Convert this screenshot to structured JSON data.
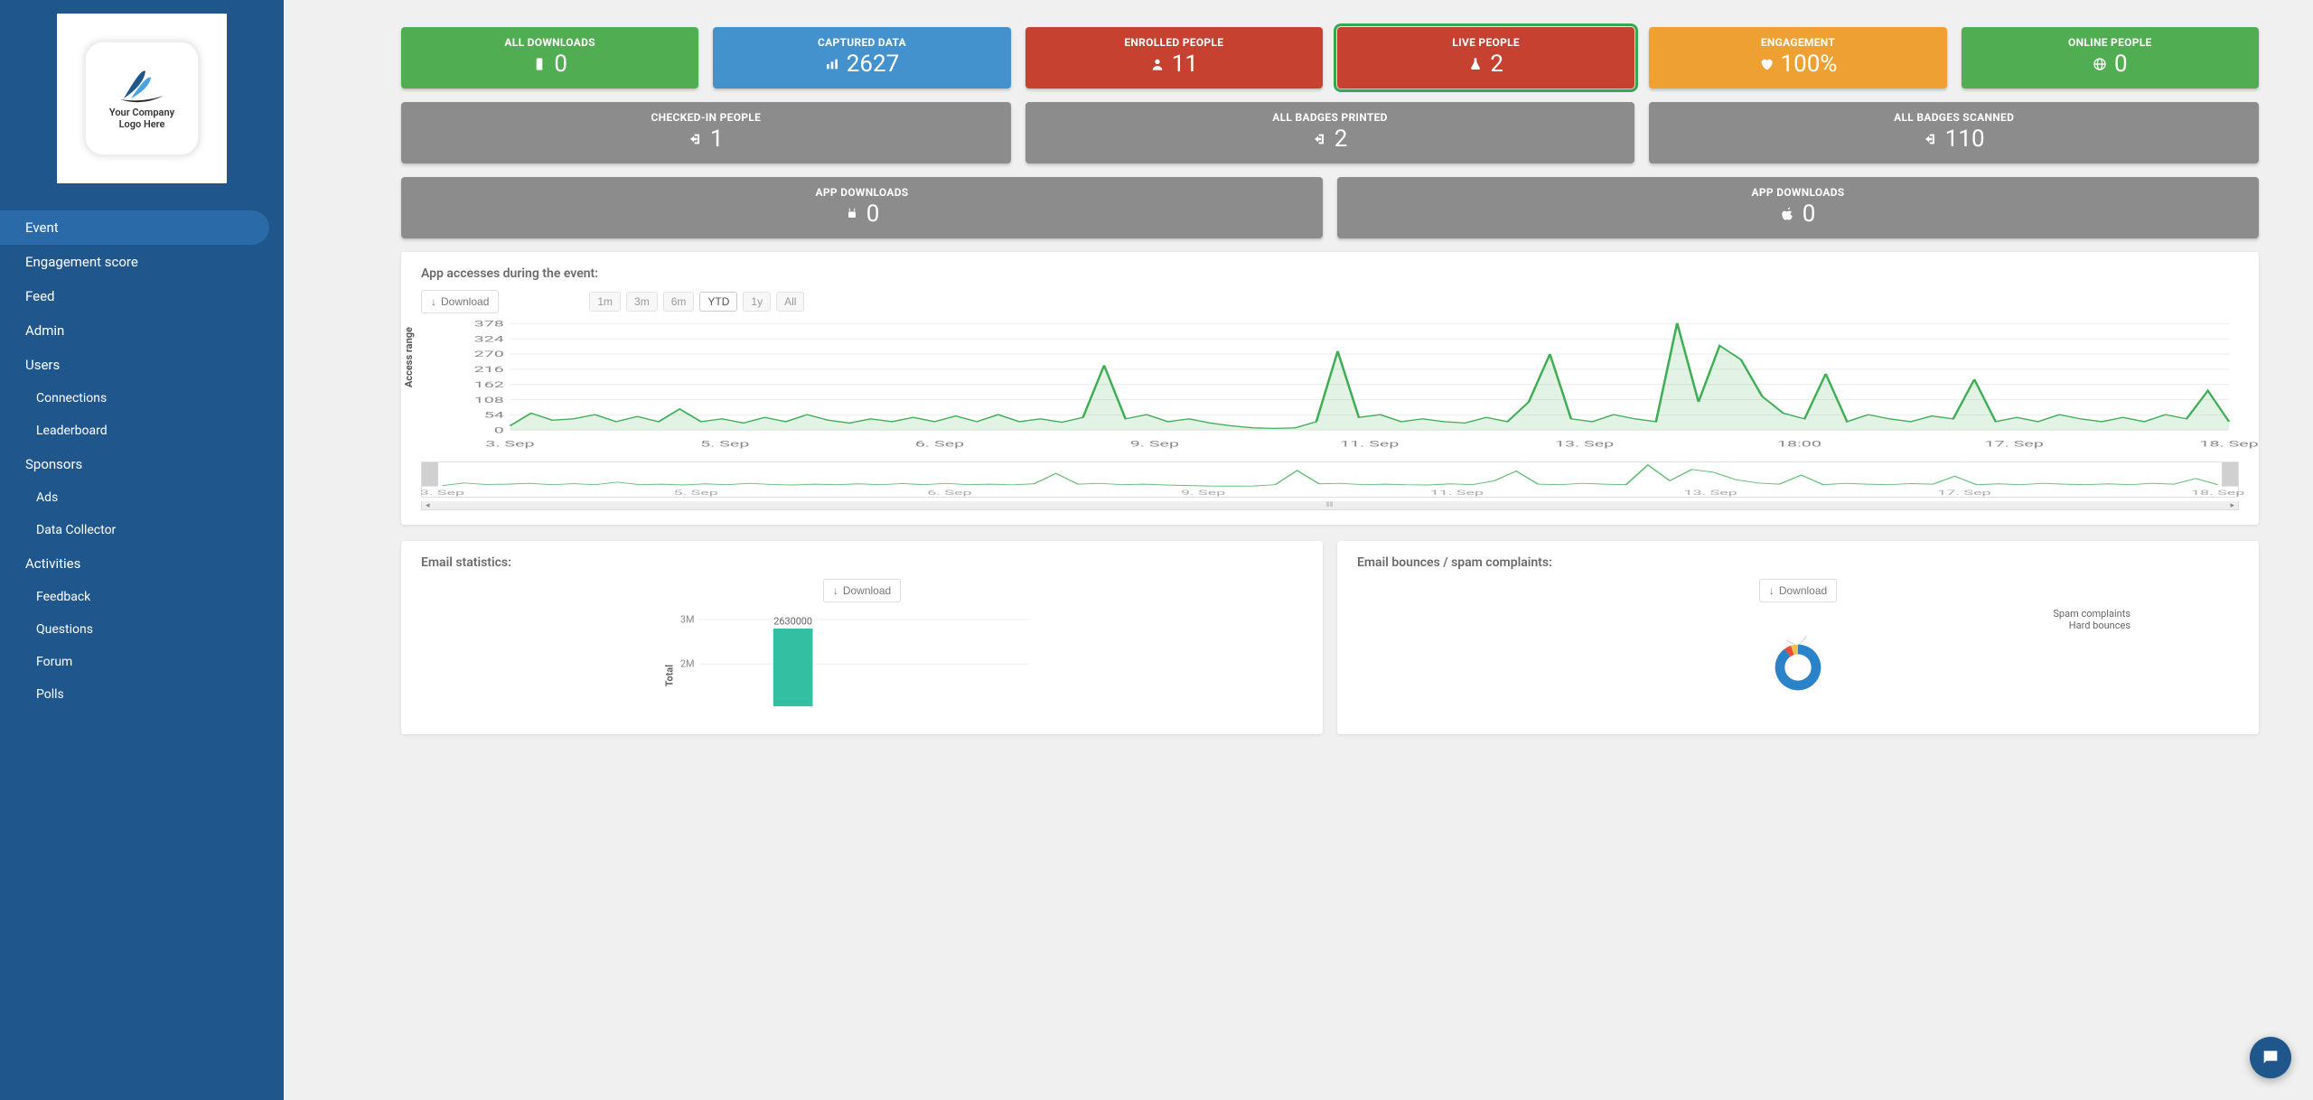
{
  "logo": {
    "line1": "Your Company",
    "line2": "Logo Here"
  },
  "sidebar": {
    "items": [
      {
        "label": "Event",
        "active": true
      },
      {
        "label": "Engagement score"
      },
      {
        "label": "Feed"
      },
      {
        "label": "Admin"
      },
      {
        "label": "Users"
      },
      {
        "label": "Connections",
        "sub": true
      },
      {
        "label": "Leaderboard",
        "sub": true
      },
      {
        "label": "Sponsors"
      },
      {
        "label": "Ads",
        "sub": true
      },
      {
        "label": "Data Collector",
        "sub": true
      },
      {
        "label": "Activities"
      },
      {
        "label": "Feedback",
        "sub": true
      },
      {
        "label": "Questions",
        "sub": true
      },
      {
        "label": "Forum",
        "sub": true
      },
      {
        "label": "Polls",
        "sub": true
      }
    ]
  },
  "metrics_row1": [
    {
      "label": "ALL DOWNLOADS",
      "value": "0",
      "icon": "phone",
      "color": "mc-green"
    },
    {
      "label": "CAPTURED DATA",
      "value": "2627",
      "icon": "bars",
      "color": "mc-blue"
    },
    {
      "label": "ENROLLED PEOPLE",
      "value": "11",
      "icon": "user",
      "color": "mc-red"
    },
    {
      "label": "LIVE PEOPLE",
      "value": "2",
      "icon": "flask",
      "color": "mc-red",
      "highlight": true
    },
    {
      "label": "ENGAGEMENT",
      "value": "100%",
      "icon": "heart",
      "color": "mc-orange"
    },
    {
      "label": "ONLINE PEOPLE",
      "value": "0",
      "icon": "globe",
      "color": "mc-green"
    }
  ],
  "metrics_row2": [
    {
      "label": "CHECKED-IN PEOPLE",
      "value": "1",
      "icon": "login",
      "color": "mc-gray"
    },
    {
      "label": "ALL BADGES PRINTED",
      "value": "2",
      "icon": "login",
      "color": "mc-gray"
    },
    {
      "label": "ALL BADGES SCANNED",
      "value": "110",
      "icon": "login",
      "color": "mc-gray"
    }
  ],
  "metrics_row3": [
    {
      "label": "APP DOWNLOADS",
      "value": "0",
      "icon": "android",
      "color": "mc-gray"
    },
    {
      "label": "APP DOWNLOADS",
      "value": "0",
      "icon": "apple",
      "color": "mc-gray"
    }
  ],
  "access_chart": {
    "title": "App accesses during the event:",
    "download_label": "Download",
    "range_options": [
      "1m",
      "3m",
      "6m",
      "YTD",
      "1y",
      "All"
    ],
    "range_active": "YTD",
    "ylabel": "Access range",
    "yticks": [
      "378",
      "324",
      "270",
      "216",
      "162",
      "108",
      "54",
      "0"
    ],
    "xticks": [
      "3. Sep",
      "5. Sep",
      "6. Sep",
      "9. Sep",
      "11. Sep",
      "13. Sep",
      "18:00",
      "17. Sep",
      "18. Sep"
    ],
    "nav_xticks": [
      "3. Sep",
      "5. Sep",
      "6. Sep",
      "9. Sep",
      "11. Sep",
      "13. Sep",
      "17. Sep",
      "18. Sep"
    ],
    "line_color": "#3fae55",
    "fill_color": "rgba(63,174,85,0.15)",
    "grid_color": "#eeeeee",
    "data": [
      15,
      60,
      35,
      40,
      55,
      30,
      48,
      30,
      75,
      30,
      40,
      25,
      45,
      30,
      55,
      35,
      25,
      40,
      30,
      45,
      30,
      50,
      30,
      55,
      30,
      40,
      28,
      45,
      230,
      40,
      55,
      30,
      40,
      25,
      15,
      8,
      6,
      8,
      30,
      280,
      45,
      55,
      30,
      40,
      30,
      25,
      45,
      30,
      100,
      270,
      40,
      30,
      55,
      40,
      30,
      380,
      100,
      300,
      250,
      120,
      60,
      40,
      200,
      30,
      55,
      40,
      30,
      50,
      40,
      180,
      30,
      45,
      30,
      55,
      40,
      30,
      45,
      30,
      55,
      40,
      140,
      30
    ]
  },
  "email_stats": {
    "title": "Email statistics:",
    "download_label": "Download",
    "ylabel": "Total",
    "yticks": [
      "3M",
      "2M"
    ],
    "bar_label": "2630000",
    "bar_value": 2630000,
    "ymax": 3000000,
    "bar_color": "#32bfa2"
  },
  "email_bounces": {
    "title": "Email bounces / spam complaints:",
    "download_label": "Download",
    "labels": {
      "spam": "Spam complaints",
      "hard": "Hard bounces"
    },
    "slices": [
      {
        "color": "#2a82c9",
        "pct": 90
      },
      {
        "color": "#e74c3c",
        "pct": 5
      },
      {
        "color": "#f4c04d",
        "pct": 5
      }
    ]
  }
}
